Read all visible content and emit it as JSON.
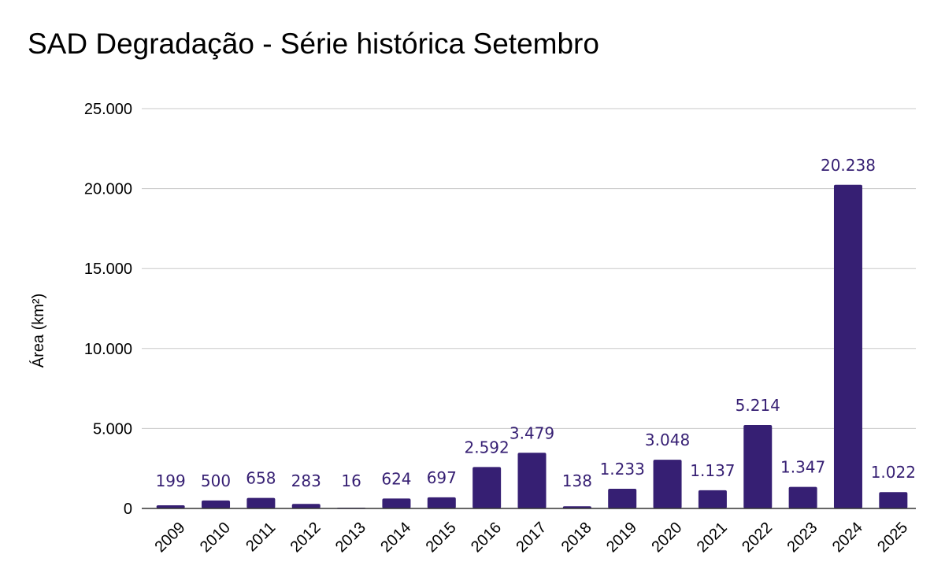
{
  "chart_data": {
    "type": "bar",
    "title": "SAD Degradação - Série histórica Setembro",
    "xlabel": "",
    "ylabel": "Área (km²)",
    "ylim": [
      0,
      25000
    ],
    "yticks": [
      0,
      5000,
      10000,
      15000,
      20000,
      25000
    ],
    "ytick_labels": [
      "0",
      "5.000",
      "10.000",
      "15.000",
      "20.000",
      "25.000"
    ],
    "grid": true,
    "legend": "none",
    "bar_color": "#361f73",
    "label_color": "#361f73",
    "categories": [
      "2009",
      "2010",
      "2011",
      "2012",
      "2013",
      "2014",
      "2015",
      "2016",
      "2017",
      "2018",
      "2019",
      "2020",
      "2021",
      "2022",
      "2023",
      "2024",
      "2025"
    ],
    "values": [
      199,
      500,
      658,
      283,
      16,
      624,
      697,
      2592,
      3479,
      138,
      1233,
      3048,
      1137,
      5214,
      1347,
      20238,
      1022
    ],
    "data_labels": [
      "199",
      "500",
      "658",
      "283",
      "16",
      "624",
      "697",
      "2.592",
      "3.479",
      "138",
      "1.233",
      "3.048",
      "1.137",
      "5.214",
      "1.347",
      "20.238",
      "1.022"
    ]
  }
}
